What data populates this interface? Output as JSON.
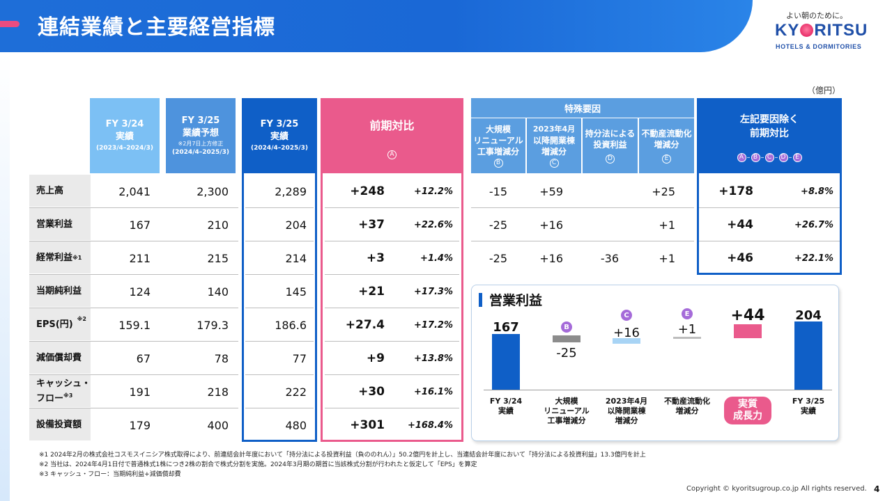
{
  "header": {
    "title": "連結業績と主要経営指標"
  },
  "logo": {
    "tagline": "よい朝のために。",
    "name_left": "KY",
    "name_right": "RITSU",
    "sub": "HOTELS & DORMITORIES"
  },
  "unit": "（億円）",
  "columns": {
    "fy24": {
      "l1": "FY 3/24",
      "l2": "実績",
      "period": "(2023/4–2024/3)"
    },
    "fy25f": {
      "l1": "FY 3/25",
      "l2": "業績予想",
      "note": "※2月7日上方修正",
      "period": "(2024/4–2025/3)"
    },
    "fy25": {
      "l1": "FY 3/25",
      "l2": "実績",
      "period": "(2024/4–2025/3)"
    },
    "yoy": {
      "l1": "前期対比",
      "mark": "A"
    },
    "special": {
      "title": "特殊要因",
      "b": {
        "l1": "大規模",
        "l2": "リニューアル",
        "l3": "工事増減分",
        "mark": "B"
      },
      "c": {
        "l1": "2023年4月",
        "l2": "以降開業棟",
        "l3": "増減分",
        "mark": "C"
      },
      "d": {
        "l1": "持分法による",
        "l2": "投資利益",
        "mark": "D"
      },
      "e": {
        "l1": "不動産流動化",
        "l2": "増減分",
        "mark": "E"
      }
    },
    "adj": {
      "l1": "左記要因除く",
      "l2": "前期対比",
      "formula": [
        "A",
        "B",
        "C",
        "D",
        "E"
      ]
    }
  },
  "rows": [
    {
      "label": "売上高",
      "sup": "",
      "fy24": "2,041",
      "fy25f": "2,300",
      "fy25": "2,289",
      "yoy": "+248",
      "yoy_pct": "+12.2%",
      "b": "-15",
      "c": "+59",
      "d": "",
      "e": "+25",
      "adj": "+178",
      "adj_pct": "+8.8%"
    },
    {
      "label": "営業利益",
      "sup": "",
      "fy24": "167",
      "fy25f": "210",
      "fy25": "204",
      "yoy": "+37",
      "yoy_pct": "+22.6%",
      "b": "-25",
      "c": "+16",
      "d": "",
      "e": "+1",
      "adj": "+44",
      "adj_pct": "+26.7%"
    },
    {
      "label": "経常利益",
      "sup": "※1",
      "fy24": "211",
      "fy25f": "215",
      "fy25": "214",
      "yoy": "+3",
      "yoy_pct": "+1.4%",
      "b": "-25",
      "c": "+16",
      "d": "-36",
      "e": "+1",
      "adj": "+46",
      "adj_pct": "+22.1%"
    },
    {
      "label": "当期純利益",
      "sup": "",
      "fy24": "124",
      "fy25f": "140",
      "fy25": "145",
      "yoy": "+21",
      "yoy_pct": "+17.3%"
    },
    {
      "label": "EPS(円)",
      "sup": "※2",
      "fy24": "159.1",
      "fy25f": "179.3",
      "fy25": "186.6",
      "yoy": "+27.4",
      "yoy_pct": "+17.2%"
    },
    {
      "label": "減価償却費",
      "sup": "",
      "fy24": "67",
      "fy25f": "78",
      "fy25": "77",
      "yoy": "+9",
      "yoy_pct": "+13.8%"
    },
    {
      "label": "キャッシュ・フロー",
      "sup": "※3",
      "label_l1": "キャッシュ・",
      "label_l2": "フロー",
      "fy24": "191",
      "fy25f": "218",
      "fy25": "222",
      "yoy": "+30",
      "yoy_pct": "+16.1%"
    },
    {
      "label": "設備投資額",
      "sup": "",
      "fy24": "179",
      "fy25f": "400",
      "fy25": "480",
      "yoy": "+301",
      "yoy_pct": "+168.4%"
    }
  ],
  "waterfall": {
    "title": "営業利益",
    "chart_data": {
      "type": "bar",
      "categories": [
        "FY 3/24 実績",
        "大規模リニューアル工事増減分",
        "2023年4月以降開業棟増減分",
        "不動産流動化増減分",
        "実質成長力",
        "FY 3/25 実績"
      ],
      "values": [
        167,
        -25,
        16,
        1,
        44,
        204
      ],
      "colors": [
        "#0f5fc7",
        "#8c8c8c",
        "#a8d4f5",
        "#bdbdbd",
        "#ea5a8c",
        "#0f5fc7"
      ]
    },
    "labels": {
      "v0": "167",
      "v1": "-25",
      "v2": "+16",
      "v3": "+1",
      "v4": "+44",
      "v5": "204"
    },
    "badges": {
      "b1": "B",
      "b2": "C",
      "b3": "E"
    },
    "xlabels": {
      "x0": [
        "FY 3/24",
        "実績"
      ],
      "x1": [
        "大規模",
        "リニューアル",
        "工事増減分"
      ],
      "x2": [
        "2023年4月",
        "以降開業棟",
        "増減分"
      ],
      "x3": [
        "不動産流動化",
        "増減分"
      ],
      "x4": [
        "実質",
        "成長力"
      ],
      "x5": [
        "FY 3/25",
        "実績"
      ]
    }
  },
  "notes": [
    "※1 2024年2月の株式会社コスモスイニシア株式取得により、前連結会計年度において「持分法による投資利益（負ののれん）」50.2億円を計上し、当連結会計年度において「持分法による投資利益」13.3億円を計上",
    "※2 当社は、2024年4月1日付で普通株式1株につき2株の割合で株式分割を実施。2024年3月期の期首に当該株式分割が行われたと仮定して「EPS」を算定",
    "※3 キャッシュ・フロー：当期純利益+減価償却費"
  ],
  "footer": {
    "copyright": "Copyright © kyoritsugroup.co.jp All rights reserved.",
    "page": "4"
  },
  "colors": {
    "banner": "#1a68d6",
    "pink": "#ea5a8c",
    "blue": "#0f5fc7",
    "lightblue": "#78bdf3"
  }
}
